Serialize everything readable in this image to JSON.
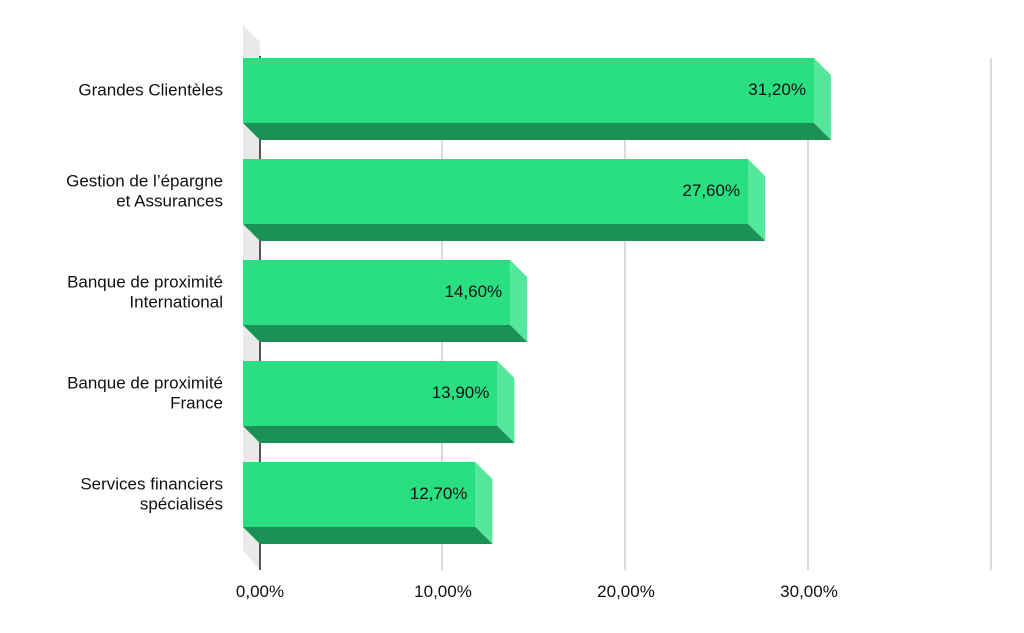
{
  "chart_data": {
    "type": "bar",
    "orientation": "horizontal",
    "style": "3d",
    "categories": [
      [
        "Grandes Clientèles"
      ],
      [
        "Gestion de l’épargne",
        "et Assurances"
      ],
      [
        "Banque de proximité",
        "International"
      ],
      [
        "Banque de proximité",
        "France"
      ],
      [
        "Services financiers",
        "spécialisés"
      ]
    ],
    "values": [
      31.2,
      27.6,
      14.6,
      13.9,
      12.7
    ],
    "value_labels": [
      "31,20%",
      "27,60%",
      "14,60%",
      "13,90%",
      "12,70%"
    ],
    "x_ticks": [
      {
        "value": 0,
        "label": "0,00%"
      },
      {
        "value": 10,
        "label": "10,00%"
      },
      {
        "value": 20,
        "label": "20,00%"
      },
      {
        "value": 30,
        "label": "30,00%"
      }
    ],
    "xlim": [
      0,
      40
    ],
    "grid": true,
    "colors": {
      "bar_front": "#2ade82",
      "bar_side": "#55e79b",
      "bar_bottom": "#1b9155",
      "axis_wall": "#e9e9e9",
      "grid": "#cfcfcf",
      "axis": "#222222"
    }
  }
}
